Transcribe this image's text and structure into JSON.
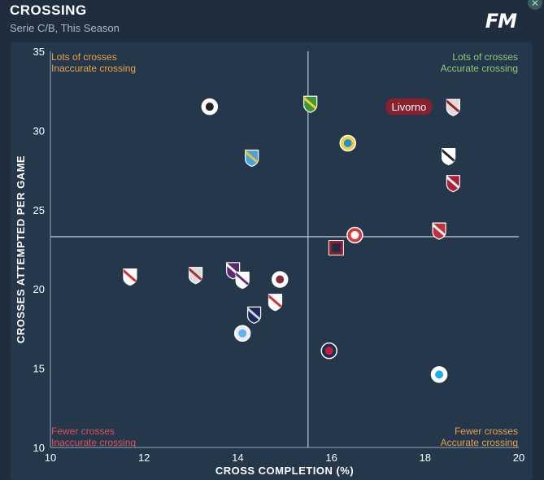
{
  "header": {
    "title": "CROSSING",
    "subtitle": "Serie C/B, This Season",
    "logo": "FM",
    "close_icon": "close-icon"
  },
  "colors": {
    "background": "#1f2d3e",
    "panel": "#25374b",
    "quadrant_orange": "#e9a24a",
    "quadrant_green": "#8fc97a",
    "quadrant_red": "#e0505b",
    "highlight": "#8b1f2d"
  },
  "quadrants": {
    "top_left": [
      "Lots of crosses",
      "Inaccurate crossing"
    ],
    "top_right": [
      "Lots of crosses",
      "Accurate crossing"
    ],
    "bottom_left": [
      "Fewer crosses",
      "Inaccurate crossing"
    ],
    "bottom_right": [
      "Fewer crosses",
      "Accurate crossing"
    ]
  },
  "chart_data": {
    "type": "scatter",
    "title": "CROSSING",
    "subtitle": "Serie C/B, This Season",
    "xlabel": "CROSS COMPLETION (%)",
    "ylabel": "CROSSES ATTEMPTED PER GAME",
    "xlim": [
      10,
      20
    ],
    "ylim": [
      10,
      35
    ],
    "xticks": [
      10,
      12,
      14,
      16,
      18,
      20
    ],
    "yticks": [
      10,
      15,
      20,
      25,
      30,
      35
    ],
    "average_lines": {
      "x": 15.5,
      "y": 23.3
    },
    "grid": false,
    "highlight": {
      "label": "Livorno",
      "x": 18.6,
      "y": 31.5
    },
    "points": [
      {
        "x": 13.4,
        "y": 31.5,
        "badge": "round-white"
      },
      {
        "x": 15.55,
        "y": 31.7,
        "badge": "shield-green-yellow"
      },
      {
        "x": 18.6,
        "y": 31.5,
        "badge": "shield-maroon"
      },
      {
        "x": 16.35,
        "y": 29.2,
        "badge": "round-yellow-blue"
      },
      {
        "x": 14.3,
        "y": 28.3,
        "badge": "shield-lightblue"
      },
      {
        "x": 18.5,
        "y": 28.4,
        "badge": "shield-black-white"
      },
      {
        "x": 18.6,
        "y": 26.7,
        "badge": "shield-crimson"
      },
      {
        "x": 18.3,
        "y": 23.7,
        "badge": "shield-red-white"
      },
      {
        "x": 16.5,
        "y": 23.4,
        "badge": "round-red"
      },
      {
        "x": 16.1,
        "y": 22.6,
        "badge": "square-maroon"
      },
      {
        "x": 11.7,
        "y": 20.8,
        "badge": "shield-white-red"
      },
      {
        "x": 13.1,
        "y": 20.9,
        "badge": "shield-grey-red"
      },
      {
        "x": 13.9,
        "y": 21.2,
        "badge": "shield-purple"
      },
      {
        "x": 14.1,
        "y": 20.6,
        "badge": "shield-purple-diag"
      },
      {
        "x": 14.9,
        "y": 20.6,
        "badge": "round-maroon"
      },
      {
        "x": 14.8,
        "y": 19.2,
        "badge": "shield-white-red"
      },
      {
        "x": 14.35,
        "y": 18.4,
        "badge": "shield-navy"
      },
      {
        "x": 14.1,
        "y": 17.2,
        "badge": "round-lightblue"
      },
      {
        "x": 15.95,
        "y": 16.1,
        "badge": "round-navy-red"
      },
      {
        "x": 18.3,
        "y": 14.6,
        "badge": "round-cyan"
      }
    ]
  }
}
